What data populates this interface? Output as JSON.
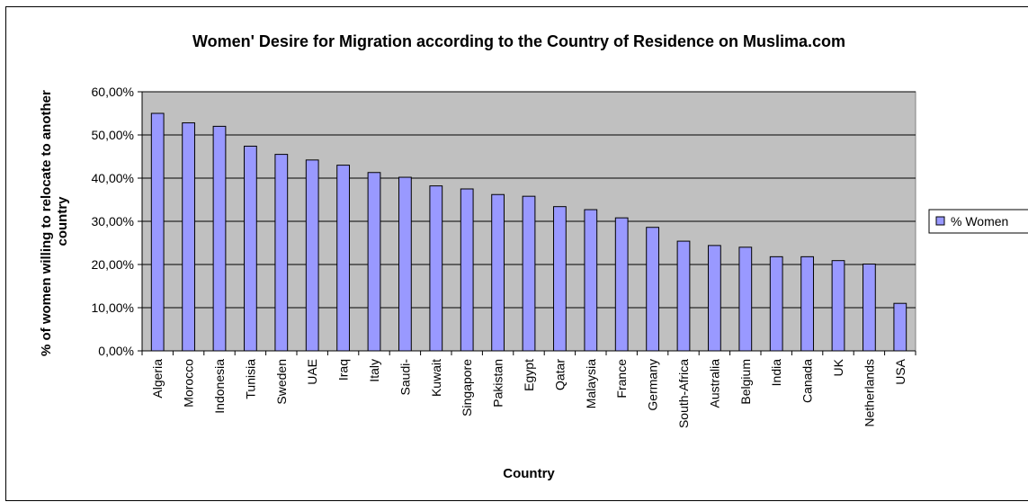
{
  "chart_data": {
    "type": "bar",
    "title": "Women' Desire for Migration according to the Country of Residence on Muslima.com",
    "xlabel": "Country",
    "ylabel_lines": [
      "% of women willing to relocate to another",
      "country"
    ],
    "ylim": [
      0,
      0.6
    ],
    "y_ticks": [
      "0,00%",
      "10,00%",
      "20,00%",
      "30,00%",
      "40,00%",
      "50,00%",
      "60,00%"
    ],
    "grid": true,
    "legend_position": "right",
    "categories": [
      "Algeria",
      "Morocco",
      "Indonesia",
      "Tunisia",
      "Sweden",
      "UAE",
      "Iraq",
      "Italy",
      "Saudi-",
      "Kuwait",
      "Singapore",
      "Pakistan",
      "Egypt",
      "Qatar",
      "Malaysia",
      "France",
      "Germany",
      "South-Africa",
      "Australia",
      "Belgium",
      "India",
      "Canada",
      "UK",
      "Netherlands",
      "USA"
    ],
    "series": [
      {
        "name": "% Women",
        "values": [
          0.55,
          0.528,
          0.52,
          0.474,
          0.455,
          0.442,
          0.43,
          0.413,
          0.402,
          0.382,
          0.375,
          0.362,
          0.358,
          0.334,
          0.327,
          0.308,
          0.286,
          0.254,
          0.244,
          0.24,
          0.218,
          0.218,
          0.209,
          0.201,
          0.11
        ]
      }
    ]
  },
  "colors": {
    "plot_background": "#c0c0c0",
    "bar_fill": "#9999ff",
    "bar_stroke": "#000000",
    "gridline": "#000000"
  }
}
